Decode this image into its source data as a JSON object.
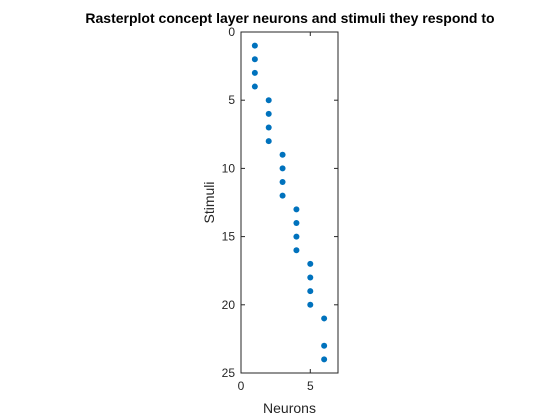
{
  "chart_data": {
    "type": "scatter",
    "title": "Rasterplot concept layer neurons and stimuli they respond to",
    "xlabel": "Neurons",
    "ylabel": "Stimuli",
    "xlim": [
      0,
      7
    ],
    "ylim": [
      0,
      25
    ],
    "y_axis_direction": "reversed",
    "xticks": [
      0,
      5
    ],
    "yticks": [
      0,
      5,
      10,
      15,
      20,
      25
    ],
    "grid": false,
    "legend": "none",
    "marker_color": "#0072BD",
    "points": [
      {
        "x": 1,
        "y": 1
      },
      {
        "x": 1,
        "y": 2
      },
      {
        "x": 1,
        "y": 3
      },
      {
        "x": 1,
        "y": 4
      },
      {
        "x": 2,
        "y": 5
      },
      {
        "x": 2,
        "y": 6
      },
      {
        "x": 2,
        "y": 7
      },
      {
        "x": 2,
        "y": 8
      },
      {
        "x": 3,
        "y": 9
      },
      {
        "x": 3,
        "y": 10
      },
      {
        "x": 3,
        "y": 11
      },
      {
        "x": 3,
        "y": 12
      },
      {
        "x": 4,
        "y": 13
      },
      {
        "x": 4,
        "y": 14
      },
      {
        "x": 4,
        "y": 15
      },
      {
        "x": 4,
        "y": 16
      },
      {
        "x": 5,
        "y": 17
      },
      {
        "x": 5,
        "y": 18
      },
      {
        "x": 5,
        "y": 19
      },
      {
        "x": 5,
        "y": 20
      },
      {
        "x": 6,
        "y": 21
      },
      {
        "x": 6,
        "y": 23
      },
      {
        "x": 6,
        "y": 24
      }
    ]
  }
}
